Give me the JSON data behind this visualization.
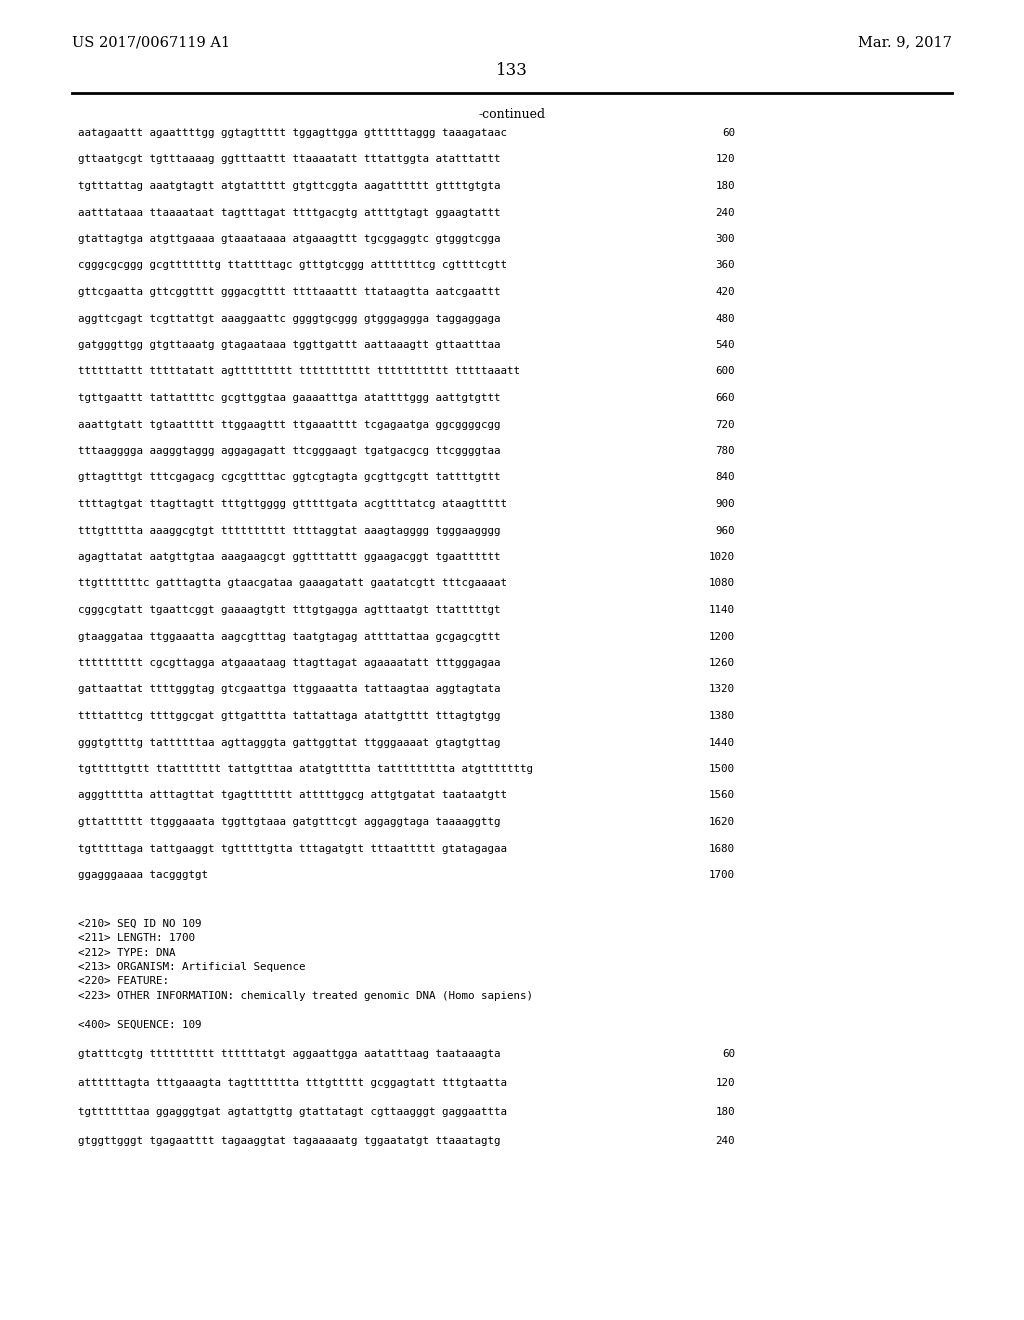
{
  "header_left": "US 2017/0067119 A1",
  "header_right": "Mar. 9, 2017",
  "page_number": "133",
  "continued_label": "-continued",
  "background_color": "#ffffff",
  "text_color": "#000000",
  "sequence_lines": [
    [
      "aatagaattt agaattttgg ggtagttttt tggagttgga gttttttaggg taaagataac",
      "60"
    ],
    [
      "gttaatgcgt tgtttaaaag ggtttaattt ttaaaatatt tttattggta atatttattt",
      "120"
    ],
    [
      "tgtttattag aaatgtagtt atgtattttt gtgttcggta aagatttttt gttttgtgta",
      "180"
    ],
    [
      "aatttataaa ttaaaataat tagtttagat ttttgacgtg attttgtagt ggaagtattt",
      "240"
    ],
    [
      "gtattagtga atgttgaaaa gtaaataaaa atgaaagttt tgcggaggtc gtgggtcgga",
      "300"
    ],
    [
      "cgggcgcggg gcgtttttttg ttattttagc gtttgtcggg atttttttcg cgttttcgtt",
      "360"
    ],
    [
      "gttcgaatta gttcggtttt gggacgtttt ttttaaattt ttataagtta aatcgaattt",
      "420"
    ],
    [
      "aggttcgagt tcgttattgt aaaggaattc ggggtgcggg gtgggaggga taggaggaga",
      "480"
    ],
    [
      "gatgggttgg gtgttaaatg gtagaataaa tggttgattt aattaaagtt gttaatttaa",
      "540"
    ],
    [
      "ttttttattt tttttatatt agttttttttt ttttttttttt ttttttttttt tttttaaatt",
      "600"
    ],
    [
      "tgttgaattt tattattttc gcgttggtaa gaaaatttga atattttggg aattgtgttt",
      "660"
    ],
    [
      "aaattgtatt tgtaattttt ttggaagttt ttgaaatttt tcgagaatga ggcggggcgg",
      "720"
    ],
    [
      "tttaagggga aagggtaggg aggagagatt ttcgggaagt tgatgacgcg ttcggggtaa",
      "780"
    ],
    [
      "gttagtttgt tttcgagacg cgcgttttac ggtcgtagta gcgttgcgtt tattttgttt",
      "840"
    ],
    [
      "ttttagtgat ttagttagtt tttgttgggg gtttttgata acgttttatcg ataagttttt",
      "900"
    ],
    [
      "tttgttttta aaaggcgtgt tttttttttt ttttaggtat aaagtagggg tgggaagggg",
      "960"
    ],
    [
      "agagttatat aatgttgtaa aaagaagcgt ggttttattt ggaagacggt tgaatttttt",
      "1020"
    ],
    [
      "ttgtttttttc gatttagtta gtaacgataa gaaagatatt gaatatcgtt tttcgaaaat",
      "1080"
    ],
    [
      "cgggcgtatt tgaattcggt gaaaagtgtt tttgtgagga agtttaatgt ttatttttgt",
      "1140"
    ],
    [
      "gtaaggataa ttggaaatta aagcgtttag taatgtagag attttattaa gcgagcgttt",
      "1200"
    ],
    [
      "tttttttttt cgcgttagga atgaaataag ttagttagat agaaaatatt tttgggagaa",
      "1260"
    ],
    [
      "gattaattat ttttgggtag gtcgaattga ttggaaatta tattaagtaa aggtagtata",
      "1320"
    ],
    [
      "ttttatttcg ttttggcgat gttgatttta tattattaga atattgtttt tttagtgtgg",
      "1380"
    ],
    [
      "gggtgttttg tattttttaa agttagggta gattggttat ttgggaaaat gtagtgttag",
      "1440"
    ],
    [
      "tgtttttgttt ttattttttt tattgtttaa atatgttttta tattttttttta atgtttttttg",
      "1500"
    ],
    [
      "agggttttta atttagttat tgagttttttt atttttggcg attgtgatat taataatgtt",
      "1560"
    ],
    [
      "gttatttttt ttgggaaata tggttgtaaa gatgtttcgt aggaggtaga taaaaggttg",
      "1620"
    ],
    [
      "tgtttttaga tattgaaggt tgtttttgtta tttagatgtt tttaattttt gtatagagaa",
      "1680"
    ],
    [
      "ggagggaaaa tacgggtgt",
      "1700"
    ]
  ],
  "metadata_lines": [
    "<210> SEQ ID NO 109",
    "<211> LENGTH: 1700",
    "<212> TYPE: DNA",
    "<213> ORGANISM: Artificial Sequence",
    "<220> FEATURE:",
    "<223> OTHER INFORMATION: chemically treated genomic DNA (Homo sapiens)"
  ],
  "seq400_label": "<400> SEQUENCE: 109",
  "seq400_lines": [
    [
      "gtatttcgtg tttttttttt ttttttatgt aggaattgga aatatttaag taataaagta",
      "60"
    ],
    [
      "attttttagta tttgaaagta tagttttttta tttgttttt gcggagtatt tttgtaatta",
      "120"
    ],
    [
      "tgtttttttaa ggagggtgat agtattgttg gtattatagt cgttaagggt gaggaattta",
      "180"
    ],
    [
      "gtggttgggt tgagaatttt tagaaggtat tagaaaaatg tggaatatgt ttaaatagtg",
      "240"
    ]
  ]
}
